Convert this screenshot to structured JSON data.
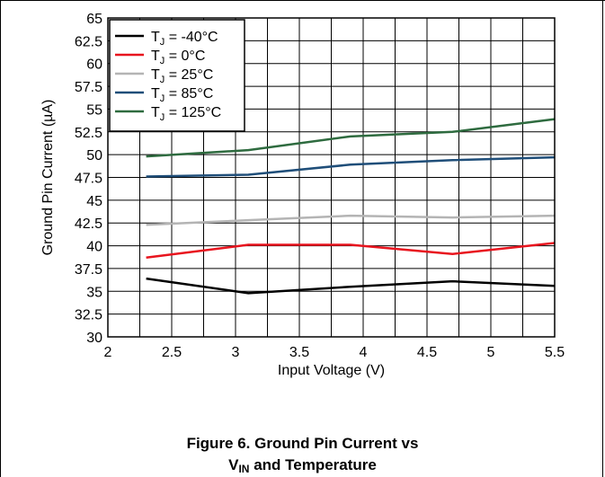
{
  "chart_data": {
    "type": "line",
    "title": "",
    "xlabel": "Input Voltage (V)",
    "ylabel": "Ground Pin Current (µA)",
    "xlim": [
      2,
      5.5
    ],
    "ylim": [
      30,
      65
    ],
    "x_ticks": [
      "2",
      "2.5",
      "3",
      "3.5",
      "4",
      "4.5",
      "5",
      "5.5"
    ],
    "x_tick_values": [
      2,
      2.5,
      3,
      3.5,
      4,
      4.5,
      5,
      5.5
    ],
    "y_ticks": [
      "30",
      "32.5",
      "35",
      "37.5",
      "40",
      "42.5",
      "45",
      "47.5",
      "50",
      "52.5",
      "55",
      "57.5",
      "60",
      "62.5",
      "65"
    ],
    "y_tick_values": [
      30,
      32.5,
      35,
      37.5,
      40,
      42.5,
      45,
      47.5,
      50,
      52.5,
      55,
      57.5,
      60,
      62.5,
      65
    ],
    "grid": true,
    "legend_position": "top-left",
    "series": [
      {
        "name": "-40°C",
        "color": "#000000",
        "x": [
          2.3,
          3.1,
          3.9,
          4.7,
          5.5
        ],
        "y": [
          36.4,
          34.8,
          35.5,
          36.1,
          35.6
        ]
      },
      {
        "name": "0°C",
        "color": "#e8141e",
        "x": [
          2.3,
          3.1,
          3.9,
          4.7,
          5.5
        ],
        "y": [
          38.7,
          40.1,
          40.1,
          39.1,
          40.3
        ]
      },
      {
        "name": "25°C",
        "color": "#b4b4b4",
        "x": [
          2.3,
          3.1,
          3.9,
          4.7,
          5.5
        ],
        "y": [
          42.3,
          42.8,
          43.3,
          43.1,
          43.3
        ]
      },
      {
        "name": "85°C",
        "color": "#1f4e79",
        "x": [
          2.3,
          3.1,
          3.9,
          4.7,
          5.5
        ],
        "y": [
          47.6,
          47.8,
          48.9,
          49.4,
          49.7
        ]
      },
      {
        "name": "125°C",
        "color": "#2e6b3f",
        "x": [
          2.3,
          3.1,
          3.9,
          4.7,
          5.5
        ],
        "y": [
          49.8,
          50.5,
          52.0,
          52.5,
          53.9
        ]
      }
    ],
    "legend_prefix": "T",
    "legend_prefix_sub": "J",
    "legend_eq": " = "
  },
  "caption": {
    "line1": "Figure 6. Ground Pin Current vs",
    "v": "V",
    "v_sub": "IN",
    "line2_rest": " and Temperature"
  }
}
